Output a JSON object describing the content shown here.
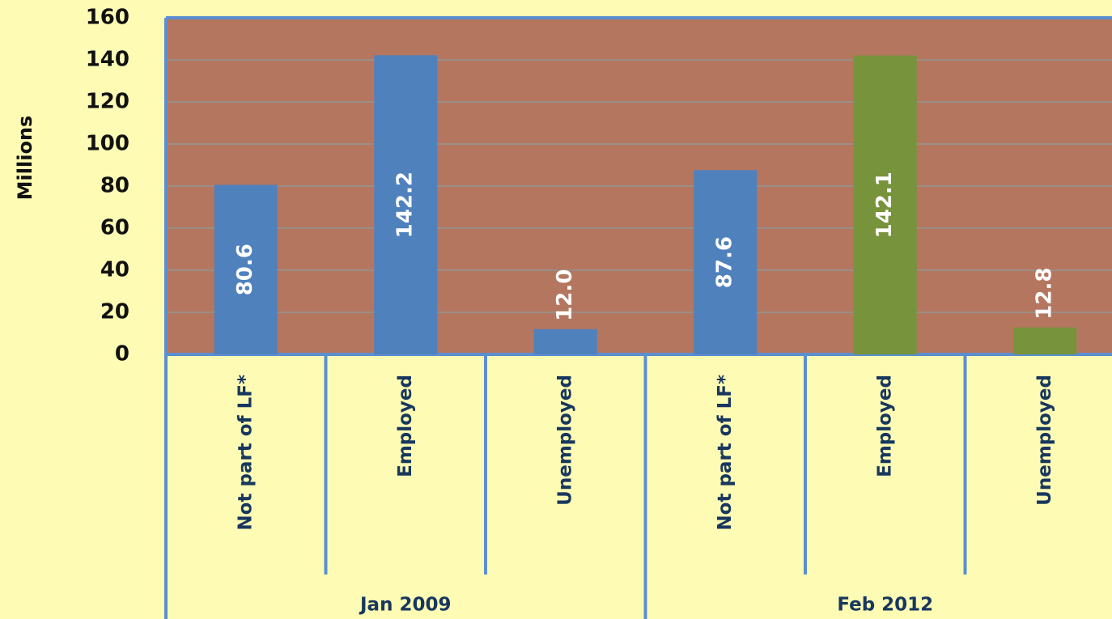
{
  "chart_data": {
    "type": "bar",
    "y_label": "Millions",
    "categories": [
      "Not part of LF*",
      "Employed",
      "Unemployed",
      "Not part of LF*",
      "Employed",
      "Unemployed"
    ],
    "groups": [
      {
        "name": "Jan 2009",
        "size": 3
      },
      {
        "name": "Feb 2012",
        "size": 3
      }
    ],
    "values": [
      80.6,
      142.2,
      12.0,
      87.6,
      142.1,
      12.8
    ],
    "value_labels": [
      "80.6",
      "142.2",
      "12.0",
      "87.6",
      "142.1",
      "12.8"
    ],
    "colors": [
      "#4f81bd",
      "#4f81bd",
      "#4f81bd",
      "#4f81bd",
      "#77933c",
      "#77933c"
    ],
    "plot_background": "#b4765f",
    "ylim": [
      0,
      160
    ],
    "yticks": [
      0,
      20,
      40,
      60,
      80,
      100,
      120,
      140,
      160
    ],
    "grid": true
  }
}
